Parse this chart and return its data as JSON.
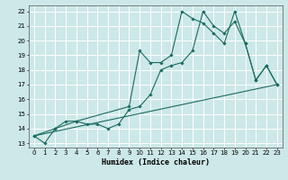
{
  "xlabel": "Humidex (Indice chaleur)",
  "bg_color": "#cde8e8",
  "grid_color": "#ffffff",
  "line_color": "#1a6b60",
  "xlim": [
    -0.5,
    23.5
  ],
  "ylim": [
    12.7,
    22.4
  ],
  "yticks": [
    13,
    14,
    15,
    16,
    17,
    18,
    19,
    20,
    21,
    22
  ],
  "xticks": [
    0,
    1,
    2,
    3,
    4,
    5,
    6,
    7,
    8,
    9,
    10,
    11,
    12,
    13,
    14,
    15,
    16,
    17,
    18,
    19,
    20,
    21,
    22,
    23
  ],
  "line1_x": [
    0,
    1,
    2,
    3,
    4,
    5,
    6,
    7,
    8,
    9,
    10,
    11,
    12,
    13,
    14,
    15,
    16,
    17,
    18,
    19,
    20,
    21,
    22,
    23
  ],
  "line1_y": [
    13.5,
    13.0,
    14.0,
    14.5,
    14.5,
    14.3,
    14.3,
    14.0,
    14.3,
    15.3,
    15.5,
    16.3,
    18.0,
    18.3,
    18.5,
    19.3,
    22.0,
    21.0,
    20.5,
    21.3,
    19.8,
    17.3,
    18.3,
    17.0
  ],
  "line2_x": [
    0,
    2,
    4,
    9,
    10,
    11,
    12,
    13,
    14,
    15,
    16,
    17,
    18,
    19,
    20,
    21,
    22,
    23
  ],
  "line2_y": [
    13.5,
    14.0,
    14.5,
    15.5,
    19.3,
    18.5,
    18.5,
    19.0,
    22.0,
    21.5,
    21.2,
    20.5,
    19.8,
    22.0,
    19.8,
    17.3,
    18.3,
    17.0
  ],
  "line3_x": [
    0,
    23
  ],
  "line3_y": [
    13.5,
    17.0
  ]
}
